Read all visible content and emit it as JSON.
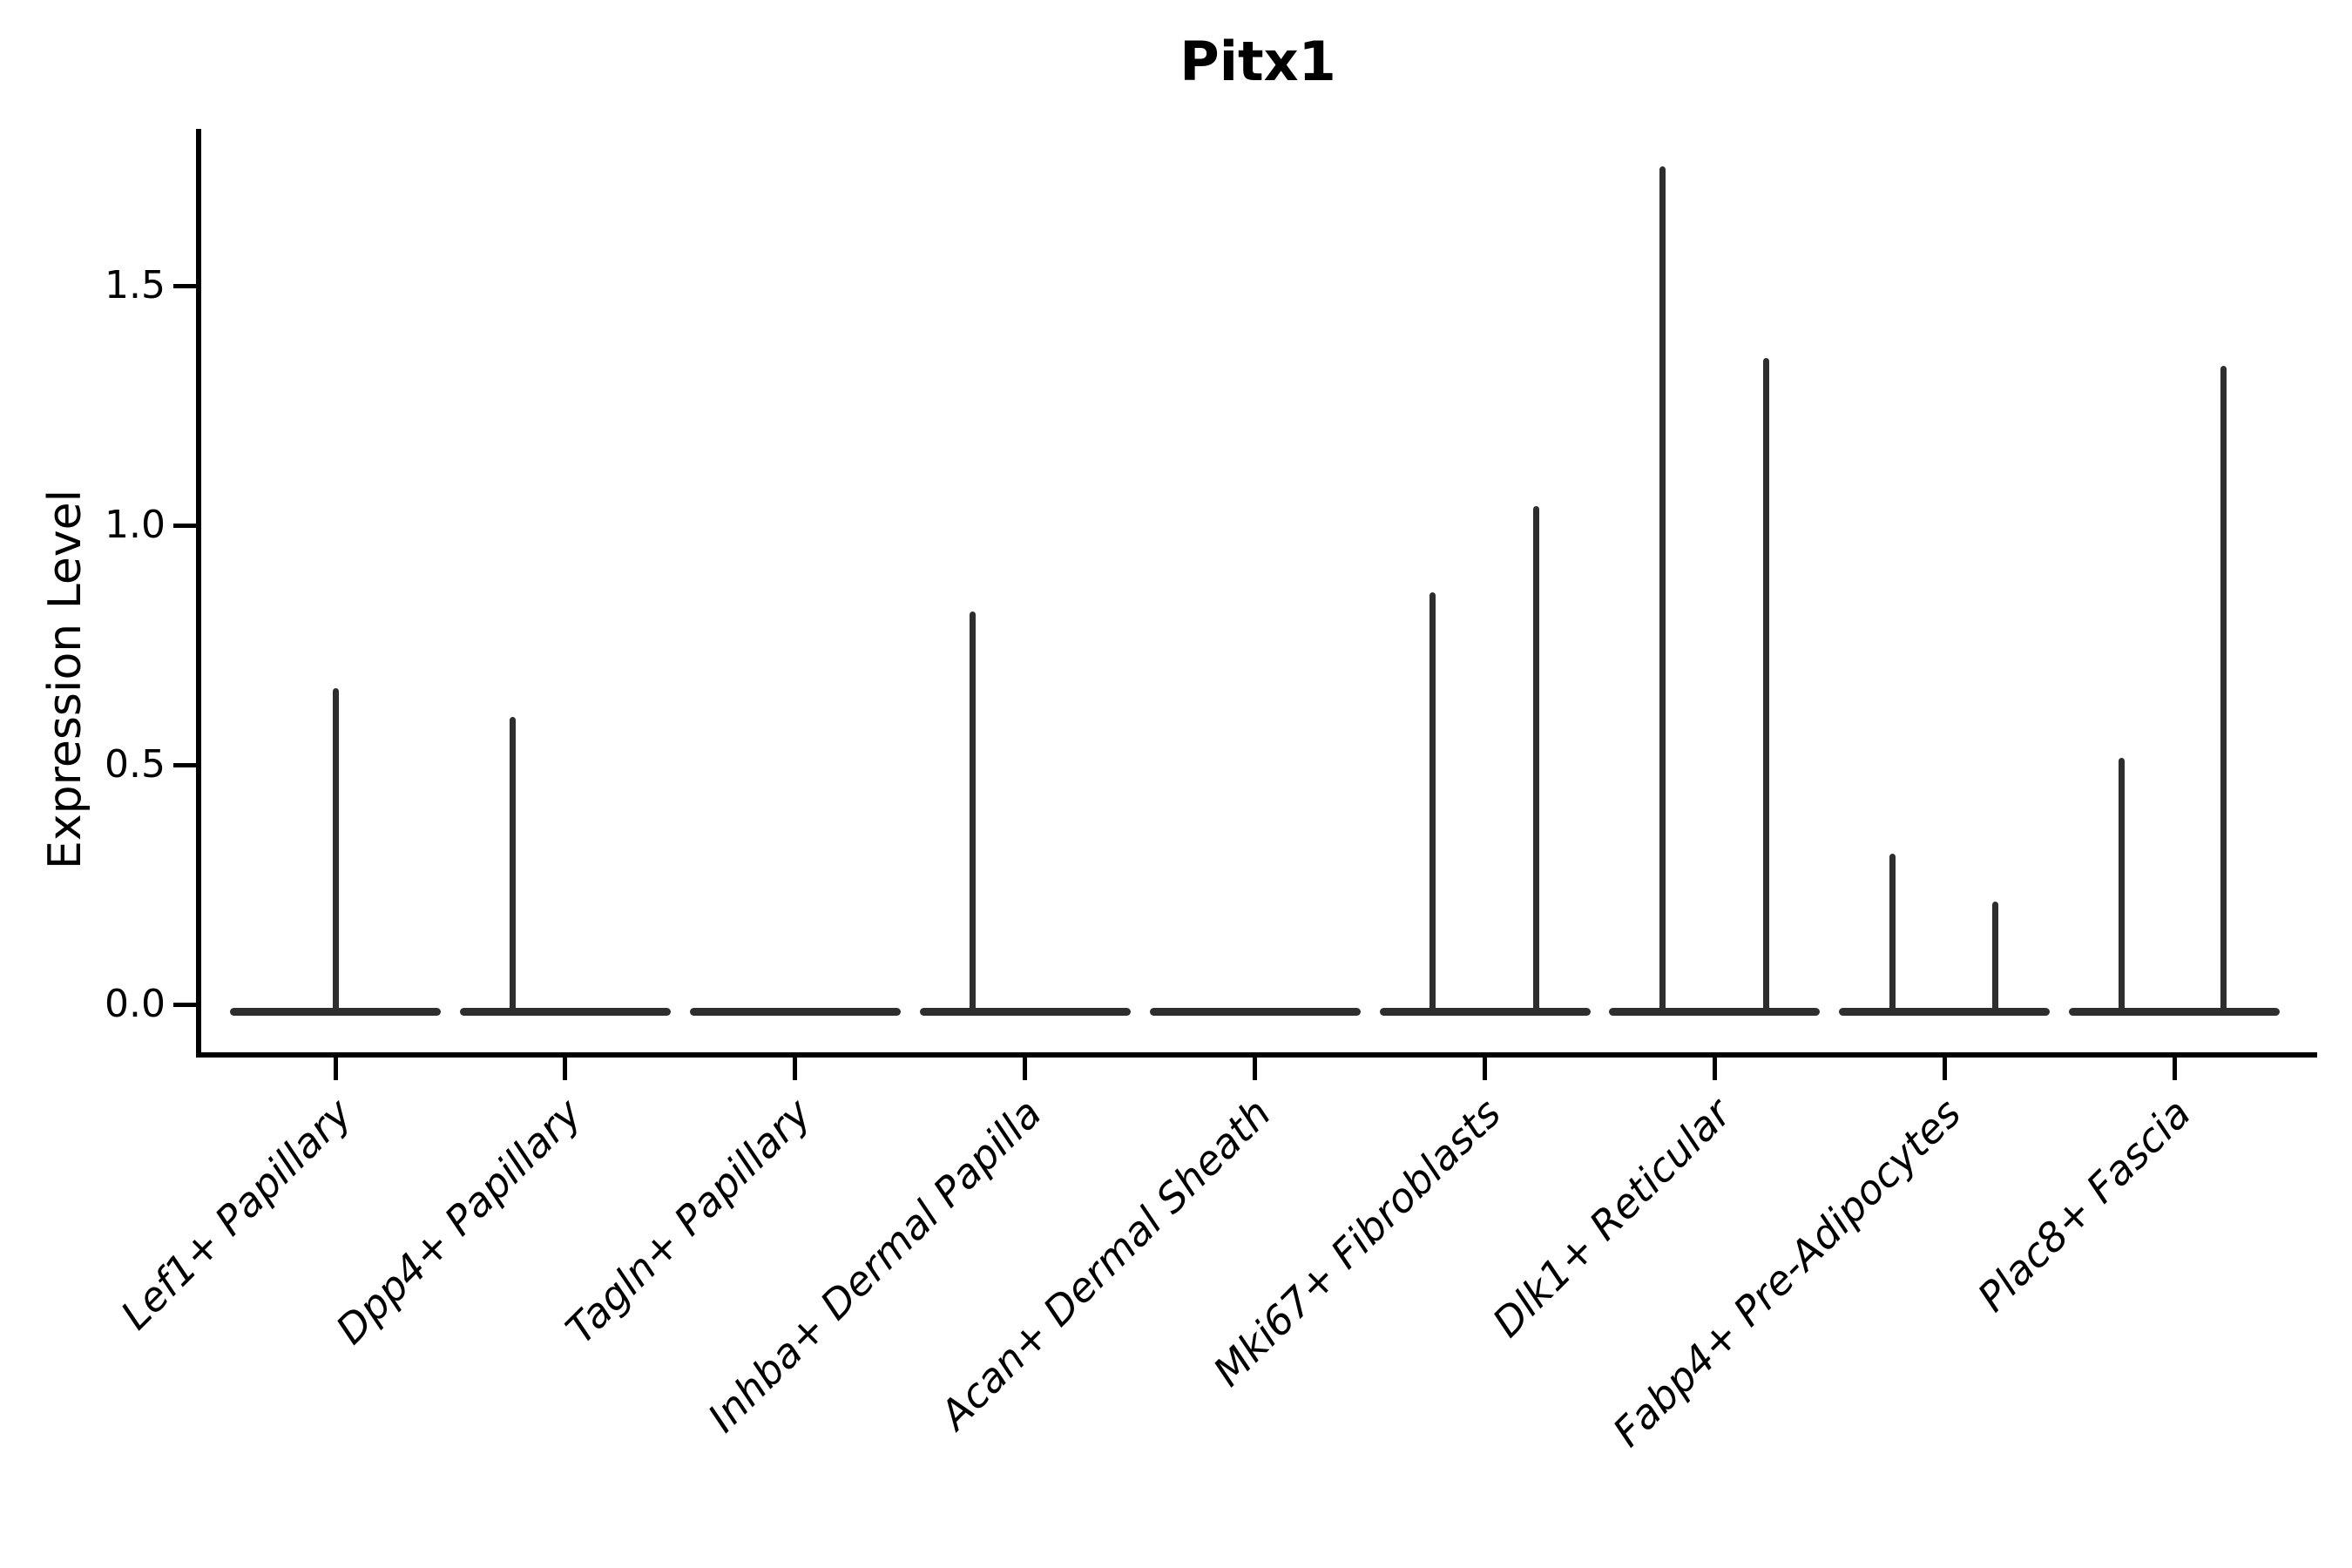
{
  "title": "Pitx1",
  "ylabel": "Expression Level",
  "colors": {
    "violin_line": "#2e2e2e",
    "axis": "#000000",
    "background": "#ffffff"
  },
  "yticks": [
    {
      "label": "0.0",
      "value": 0.0
    },
    {
      "label": "0.5",
      "value": 0.5
    },
    {
      "label": "1.0",
      "value": 1.0
    },
    {
      "label": "1.5",
      "value": 1.5
    }
  ],
  "categories": [
    {
      "label": "Lef1+ Papillary",
      "spikes": [
        {
          "dx": 0,
          "value": 0.66
        }
      ]
    },
    {
      "label": "Dpp4+ Papillary",
      "spikes": [
        {
          "dx": -60,
          "value": 0.6
        }
      ]
    },
    {
      "label": "Tagln+ Papillary",
      "spikes": []
    },
    {
      "label": "Inhba+ Dermal Papilla",
      "spikes": [
        {
          "dx": -60,
          "value": 0.82
        }
      ]
    },
    {
      "label": "Acan+ Dermal Sheath",
      "spikes": []
    },
    {
      "label": "Mki67+ Fibroblasts",
      "spikes": [
        {
          "dx": -60,
          "value": 0.86
        },
        {
          "dx": 59,
          "value": 1.04
        }
      ]
    },
    {
      "label": "Dlk1+ Reticular",
      "spikes": [
        {
          "dx": -60,
          "value": 1.75
        },
        {
          "dx": 59,
          "value": 1.35
        }
      ]
    },
    {
      "label": "Fabp4+ Pre-Adipocytes",
      "spikes": [
        {
          "dx": -60,
          "value": 0.315
        },
        {
          "dx": 58,
          "value": 0.214
        }
      ]
    },
    {
      "label": "Plac8+ Fascia",
      "spikes": [
        {
          "dx": -61,
          "value": 0.515
        },
        {
          "dx": 56,
          "value": 1.333
        }
      ]
    }
  ],
  "chart_data": {
    "type": "violin",
    "title": "Pitx1",
    "xlabel": "",
    "ylabel": "Expression Level",
    "categories": [
      "Lef1+ Papillary",
      "Dpp4+ Papillary",
      "Tagln+ Papillary",
      "Inhba+ Dermal Papilla",
      "Acan+ Dermal Sheath",
      "Mki67+ Fibroblasts",
      "Dlk1+ Reticular",
      "Fabp4+ Pre-Adipocytes",
      "Plac8+ Fascia"
    ],
    "description": "Violin plot of Pitx1 expression; each category shows a flat density body at 0 with thin vertical spikes reaching the maximum expression of rare expressing cells",
    "max_expression_spikes_per_category": [
      [
        0.66
      ],
      [
        0.6
      ],
      [],
      [
        0.82
      ],
      [],
      [
        0.86,
        1.04
      ],
      [
        1.75,
        1.35
      ],
      [
        0.315,
        0.214
      ],
      [
        0.515,
        1.333
      ]
    ],
    "bulk_of_distribution": 0.0,
    "yticks": [
      0.0,
      0.5,
      1.0,
      1.5
    ],
    "ylim": [
      -0.1,
      1.82
    ],
    "grid": false,
    "legend": "none"
  }
}
